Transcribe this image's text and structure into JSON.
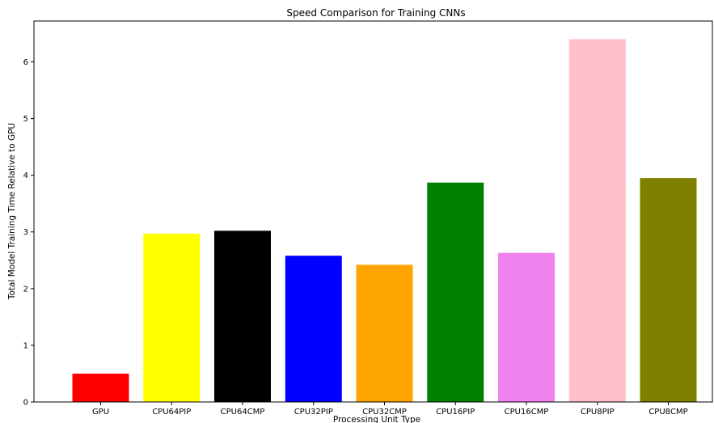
{
  "chart_data": {
    "type": "bar",
    "title": "Speed Comparison for Training CNNs",
    "xlabel": "Processing Unit Type",
    "ylabel": "Total Model Training Time Relative to GPU",
    "categories": [
      "GPU",
      "CPU64PIP",
      "CPU64CMP",
      "CPU32PIP",
      "CPU32CMP",
      "CPU16PIP",
      "CPU16CMP",
      "CPU8PIP",
      "CPU8CMP"
    ],
    "values": [
      0.5,
      2.97,
      3.02,
      2.58,
      2.42,
      3.87,
      2.63,
      6.4,
      3.95
    ],
    "colors": [
      "#ff0000",
      "#ffff00",
      "#000000",
      "#0000ff",
      "#ffa500",
      "#008000",
      "#ee82ee",
      "#ffc0cb",
      "#808000"
    ],
    "ylim": [
      0,
      6.72
    ],
    "yticks": [
      0,
      1,
      2,
      3,
      4,
      5,
      6
    ],
    "grid": false,
    "legend": "none"
  }
}
